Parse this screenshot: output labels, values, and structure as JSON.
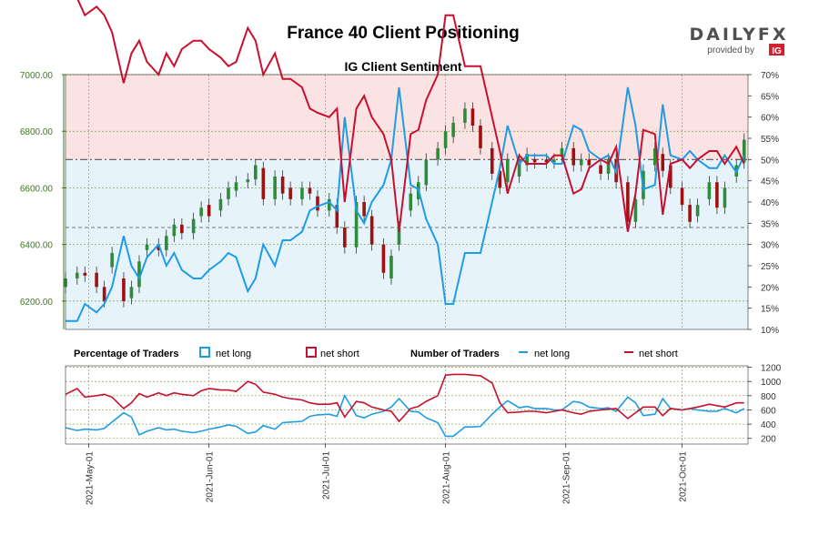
{
  "chart_data": {
    "type": "candlestick+line",
    "title": "France 40 Client Positioning",
    "subtitle": "IG Client Sentiment",
    "brand": {
      "name": "DAILYFX",
      "tagline": "provided by",
      "provider": "IG",
      "accent": "#d4202c",
      "text_color": "#505050"
    },
    "colors": {
      "net_long": "#1f9ce4",
      "net_short": "#c8102e",
      "candle_up": "#2e8b3a",
      "candle_down": "#a01010",
      "upper_fill": "#fbe3e3",
      "lower_fill": "#e6f3fb",
      "grid": "#6b9e3e"
    },
    "x_axis": {
      "ticks": [
        "2021-May-01",
        "2021-Jun-01",
        "2021-Jul-01",
        "2021-Aug-01",
        "2021-Sep-01",
        "2021-Oct-01"
      ],
      "tick_days": [
        6,
        37,
        67,
        98,
        129,
        159
      ],
      "total_days": 176
    },
    "price_axis": {
      "ticks": [
        "6200.00",
        "6400.00",
        "6600.00",
        "6800.00",
        "7000.00"
      ],
      "values": [
        6200,
        6400,
        6600,
        6800,
        7000
      ],
      "range": [
        6100,
        7000
      ]
    },
    "pct_axis": {
      "ticks": [
        "10%",
        "15%",
        "20%",
        "25%",
        "30%",
        "35%",
        "40%",
        "45%",
        "50%",
        "55%",
        "60%",
        "65%",
        "70%"
      ],
      "values": [
        10,
        15,
        20,
        25,
        30,
        35,
        40,
        45,
        50,
        55,
        60,
        65,
        70
      ],
      "range": [
        10,
        70
      ],
      "ref_levels": [
        50,
        34
      ]
    },
    "count_axis": {
      "ticks": [
        "200",
        "400",
        "600",
        "800",
        "1000",
        "1200"
      ],
      "values": [
        200,
        400,
        600,
        800,
        1000,
        1200
      ],
      "range": [
        120,
        1220
      ]
    },
    "legend": {
      "percentage_title": "Percentage of Traders",
      "number_title": "Number of Traders",
      "net_long": "net long",
      "net_short": "net short"
    },
    "price_series": [
      [
        0,
        6250,
        6280
      ],
      [
        3,
        6280,
        6300
      ],
      [
        5,
        6300,
        6290
      ],
      [
        8,
        6300,
        6250
      ],
      [
        10,
        6250,
        6200
      ],
      [
        12,
        6320,
        6370
      ],
      [
        15,
        6280,
        6200
      ],
      [
        17,
        6210,
        6250
      ],
      [
        19,
        6250,
        6340
      ],
      [
        21,
        6380,
        6400
      ],
      [
        24,
        6400,
        6380
      ],
      [
        26,
        6380,
        6430
      ],
      [
        28,
        6430,
        6470
      ],
      [
        30,
        6470,
        6440
      ],
      [
        33,
        6440,
        6490
      ],
      [
        35,
        6500,
        6530
      ],
      [
        37,
        6540,
        6500
      ],
      [
        40,
        6520,
        6560
      ],
      [
        42,
        6560,
        6600
      ],
      [
        44,
        6590,
        6620
      ],
      [
        47,
        6620,
        6630
      ],
      [
        49,
        6630,
        6680
      ],
      [
        51,
        6670,
        6560
      ],
      [
        54,
        6560,
        6640
      ],
      [
        56,
        6640,
        6580
      ],
      [
        58,
        6600,
        6560
      ],
      [
        61,
        6560,
        6600
      ],
      [
        63,
        6600,
        6580
      ],
      [
        65,
        6570,
        6520
      ],
      [
        68,
        6520,
        6560
      ],
      [
        70,
        6540,
        6460
      ],
      [
        72,
        6460,
        6390
      ],
      [
        75,
        6390,
        6550
      ],
      [
        77,
        6550,
        6500
      ],
      [
        79,
        6500,
        6400
      ],
      [
        82,
        6400,
        6300
      ],
      [
        84,
        6280,
        6360
      ],
      [
        86,
        6400,
        6460
      ],
      [
        89,
        6520,
        6580
      ],
      [
        91,
        6560,
        6620
      ],
      [
        93,
        6610,
        6700
      ],
      [
        96,
        6700,
        6740
      ],
      [
        98,
        6740,
        6800
      ],
      [
        100,
        6780,
        6830
      ],
      [
        103,
        6830,
        6880
      ],
      [
        105,
        6880,
        6820
      ],
      [
        107,
        6820,
        6740
      ],
      [
        110,
        6740,
        6650
      ],
      [
        112,
        6660,
        6600
      ],
      [
        114,
        6620,
        6700
      ],
      [
        117,
        6640,
        6700
      ],
      [
        119,
        6680,
        6720
      ],
      [
        121,
        6700,
        6690
      ],
      [
        124,
        6700,
        6690
      ],
      [
        126,
        6690,
        6700
      ],
      [
        128,
        6710,
        6740
      ],
      [
        131,
        6740,
        6680
      ],
      [
        133,
        6680,
        6700
      ],
      [
        135,
        6700,
        6680
      ],
      [
        138,
        6680,
        6650
      ],
      [
        140,
        6650,
        6700
      ],
      [
        142,
        6700,
        6620
      ],
      [
        145,
        6620,
        6480
      ],
      [
        147,
        6480,
        6560
      ],
      [
        149,
        6560,
        6660
      ],
      [
        152,
        6680,
        6740
      ],
      [
        154,
        6720,
        6660
      ],
      [
        156,
        6680,
        6600
      ],
      [
        159,
        6600,
        6540
      ],
      [
        161,
        6540,
        6480
      ],
      [
        163,
        6500,
        6540
      ],
      [
        166,
        6560,
        6620
      ],
      [
        168,
        6620,
        6530
      ],
      [
        170,
        6530,
        6600
      ],
      [
        173,
        6640,
        6680
      ],
      [
        175,
        6690,
        6770
      ]
    ],
    "long_pct_series": [
      [
        0,
        12
      ],
      [
        3,
        12
      ],
      [
        5,
        16
      ],
      [
        8,
        14
      ],
      [
        10,
        16
      ],
      [
        12,
        20
      ],
      [
        15,
        32
      ],
      [
        17,
        25
      ],
      [
        19,
        22
      ],
      [
        21,
        27
      ],
      [
        24,
        30
      ],
      [
        26,
        25
      ],
      [
        28,
        28
      ],
      [
        30,
        24
      ],
      [
        33,
        22
      ],
      [
        35,
        22
      ],
      [
        37,
        24
      ],
      [
        40,
        26
      ],
      [
        42,
        28
      ],
      [
        44,
        27
      ],
      [
        47,
        19
      ],
      [
        49,
        22
      ],
      [
        51,
        30
      ],
      [
        54,
        25
      ],
      [
        56,
        31
      ],
      [
        58,
        31
      ],
      [
        61,
        33
      ],
      [
        63,
        38
      ],
      [
        65,
        39
      ],
      [
        68,
        40
      ],
      [
        70,
        38
      ],
      [
        72,
        60
      ],
      [
        75,
        38
      ],
      [
        77,
        35
      ],
      [
        79,
        40
      ],
      [
        82,
        44
      ],
      [
        84,
        50
      ],
      [
        86,
        67
      ],
      [
        89,
        44
      ],
      [
        91,
        43
      ],
      [
        93,
        36
      ],
      [
        96,
        30
      ],
      [
        98,
        16
      ],
      [
        100,
        16
      ],
      [
        103,
        28
      ],
      [
        105,
        28
      ],
      [
        107,
        28
      ],
      [
        110,
        40
      ],
      [
        112,
        48
      ],
      [
        114,
        58
      ],
      [
        117,
        49
      ],
      [
        119,
        51
      ],
      [
        121,
        51
      ],
      [
        124,
        51
      ],
      [
        126,
        49
      ],
      [
        128,
        49
      ],
      [
        131,
        58
      ],
      [
        133,
        57
      ],
      [
        135,
        52
      ],
      [
        138,
        50
      ],
      [
        140,
        51
      ],
      [
        142,
        47
      ],
      [
        145,
        67
      ],
      [
        147,
        58
      ],
      [
        149,
        43
      ],
      [
        152,
        44
      ],
      [
        154,
        63
      ],
      [
        156,
        51
      ],
      [
        159,
        50
      ],
      [
        161,
        52
      ],
      [
        163,
        50
      ],
      [
        166,
        48
      ],
      [
        168,
        48
      ],
      [
        170,
        51
      ],
      [
        173,
        47
      ],
      [
        175,
        51
      ]
    ],
    "short_pct_series": [
      [
        0,
        88
      ],
      [
        3,
        88
      ],
      [
        5,
        84
      ],
      [
        8,
        86
      ],
      [
        10,
        84
      ],
      [
        12,
        80
      ],
      [
        15,
        68
      ],
      [
        17,
        75
      ],
      [
        19,
        78
      ],
      [
        21,
        73
      ],
      [
        24,
        70
      ],
      [
        26,
        75
      ],
      [
        28,
        72
      ],
      [
        30,
        76
      ],
      [
        33,
        78
      ],
      [
        35,
        78
      ],
      [
        37,
        76
      ],
      [
        40,
        74
      ],
      [
        42,
        72
      ],
      [
        44,
        73
      ],
      [
        47,
        81
      ],
      [
        49,
        78
      ],
      [
        51,
        70
      ],
      [
        54,
        75
      ],
      [
        56,
        69
      ],
      [
        58,
        69
      ],
      [
        61,
        67
      ],
      [
        63,
        62
      ],
      [
        65,
        61
      ],
      [
        68,
        60
      ],
      [
        70,
        62
      ],
      [
        72,
        40
      ],
      [
        75,
        62
      ],
      [
        77,
        65
      ],
      [
        79,
        60
      ],
      [
        82,
        56
      ],
      [
        84,
        50
      ],
      [
        86,
        33
      ],
      [
        89,
        56
      ],
      [
        91,
        57
      ],
      [
        93,
        64
      ],
      [
        96,
        70
      ],
      [
        98,
        84
      ],
      [
        100,
        84
      ],
      [
        103,
        72
      ],
      [
        105,
        72
      ],
      [
        107,
        72
      ],
      [
        110,
        60
      ],
      [
        112,
        52
      ],
      [
        114,
        42
      ],
      [
        117,
        51
      ],
      [
        119,
        49
      ],
      [
        121,
        49
      ],
      [
        124,
        49
      ],
      [
        126,
        51
      ],
      [
        128,
        51
      ],
      [
        131,
        42
      ],
      [
        133,
        43
      ],
      [
        135,
        48
      ],
      [
        138,
        50
      ],
      [
        140,
        49
      ],
      [
        142,
        53
      ],
      [
        145,
        33
      ],
      [
        147,
        42
      ],
      [
        149,
        57
      ],
      [
        152,
        56
      ],
      [
        154,
        37
      ],
      [
        156,
        49
      ],
      [
        159,
        50
      ],
      [
        161,
        48
      ],
      [
        163,
        50
      ],
      [
        166,
        52
      ],
      [
        168,
        52
      ],
      [
        170,
        49
      ],
      [
        173,
        53
      ],
      [
        175,
        49
      ]
    ],
    "long_count_series": [
      [
        0,
        350
      ],
      [
        3,
        310
      ],
      [
        5,
        330
      ],
      [
        8,
        320
      ],
      [
        10,
        340
      ],
      [
        12,
        430
      ],
      [
        15,
        560
      ],
      [
        17,
        500
      ],
      [
        19,
        250
      ],
      [
        21,
        300
      ],
      [
        24,
        350
      ],
      [
        26,
        320
      ],
      [
        28,
        330
      ],
      [
        30,
        300
      ],
      [
        33,
        280
      ],
      [
        35,
        300
      ],
      [
        37,
        330
      ],
      [
        40,
        360
      ],
      [
        42,
        390
      ],
      [
        44,
        370
      ],
      [
        47,
        270
      ],
      [
        49,
        290
      ],
      [
        51,
        380
      ],
      [
        54,
        330
      ],
      [
        56,
        420
      ],
      [
        58,
        430
      ],
      [
        61,
        440
      ],
      [
        63,
        510
      ],
      [
        65,
        530
      ],
      [
        68,
        540
      ],
      [
        70,
        510
      ],
      [
        72,
        800
      ],
      [
        75,
        520
      ],
      [
        77,
        490
      ],
      [
        79,
        540
      ],
      [
        82,
        580
      ],
      [
        84,
        640
      ],
      [
        86,
        760
      ],
      [
        89,
        580
      ],
      [
        91,
        570
      ],
      [
        93,
        490
      ],
      [
        96,
        420
      ],
      [
        98,
        230
      ],
      [
        100,
        230
      ],
      [
        103,
        360
      ],
      [
        105,
        360
      ],
      [
        107,
        370
      ],
      [
        110,
        540
      ],
      [
        112,
        640
      ],
      [
        114,
        730
      ],
      [
        117,
        630
      ],
      [
        119,
        650
      ],
      [
        121,
        620
      ],
      [
        124,
        620
      ],
      [
        126,
        600
      ],
      [
        128,
        600
      ],
      [
        131,
        720
      ],
      [
        133,
        700
      ],
      [
        135,
        640
      ],
      [
        138,
        620
      ],
      [
        140,
        630
      ],
      [
        142,
        580
      ],
      [
        145,
        780
      ],
      [
        147,
        700
      ],
      [
        149,
        520
      ],
      [
        152,
        540
      ],
      [
        154,
        760
      ],
      [
        156,
        620
      ],
      [
        159,
        600
      ],
      [
        161,
        620
      ],
      [
        163,
        600
      ],
      [
        166,
        580
      ],
      [
        168,
        580
      ],
      [
        170,
        620
      ],
      [
        173,
        560
      ],
      [
        175,
        620
      ]
    ],
    "short_count_series": [
      [
        0,
        820
      ],
      [
        3,
        900
      ],
      [
        5,
        780
      ],
      [
        8,
        800
      ],
      [
        10,
        820
      ],
      [
        12,
        780
      ],
      [
        15,
        620
      ],
      [
        17,
        700
      ],
      [
        19,
        830
      ],
      [
        21,
        780
      ],
      [
        24,
        840
      ],
      [
        26,
        800
      ],
      [
        28,
        840
      ],
      [
        30,
        820
      ],
      [
        33,
        800
      ],
      [
        35,
        870
      ],
      [
        37,
        900
      ],
      [
        40,
        880
      ],
      [
        42,
        880
      ],
      [
        44,
        860
      ],
      [
        47,
        1000
      ],
      [
        49,
        960
      ],
      [
        51,
        850
      ],
      [
        54,
        820
      ],
      [
        56,
        780
      ],
      [
        58,
        760
      ],
      [
        61,
        740
      ],
      [
        63,
        700
      ],
      [
        65,
        680
      ],
      [
        68,
        680
      ],
      [
        70,
        700
      ],
      [
        72,
        500
      ],
      [
        75,
        720
      ],
      [
        77,
        700
      ],
      [
        79,
        640
      ],
      [
        82,
        600
      ],
      [
        84,
        580
      ],
      [
        86,
        440
      ],
      [
        89,
        620
      ],
      [
        91,
        650
      ],
      [
        93,
        720
      ],
      [
        96,
        800
      ],
      [
        98,
        1090
      ],
      [
        100,
        1100
      ],
      [
        103,
        1100
      ],
      [
        105,
        1090
      ],
      [
        107,
        1080
      ],
      [
        110,
        980
      ],
      [
        112,
        700
      ],
      [
        114,
        560
      ],
      [
        117,
        570
      ],
      [
        119,
        580
      ],
      [
        121,
        580
      ],
      [
        124,
        560
      ],
      [
        126,
        580
      ],
      [
        128,
        600
      ],
      [
        131,
        560
      ],
      [
        133,
        540
      ],
      [
        135,
        580
      ],
      [
        138,
        600
      ],
      [
        140,
        610
      ],
      [
        142,
        620
      ],
      [
        145,
        480
      ],
      [
        147,
        560
      ],
      [
        149,
        640
      ],
      [
        152,
        640
      ],
      [
        154,
        520
      ],
      [
        156,
        620
      ],
      [
        159,
        600
      ],
      [
        161,
        620
      ],
      [
        163,
        640
      ],
      [
        166,
        680
      ],
      [
        168,
        660
      ],
      [
        170,
        640
      ],
      [
        173,
        700
      ],
      [
        175,
        700
      ]
    ]
  }
}
